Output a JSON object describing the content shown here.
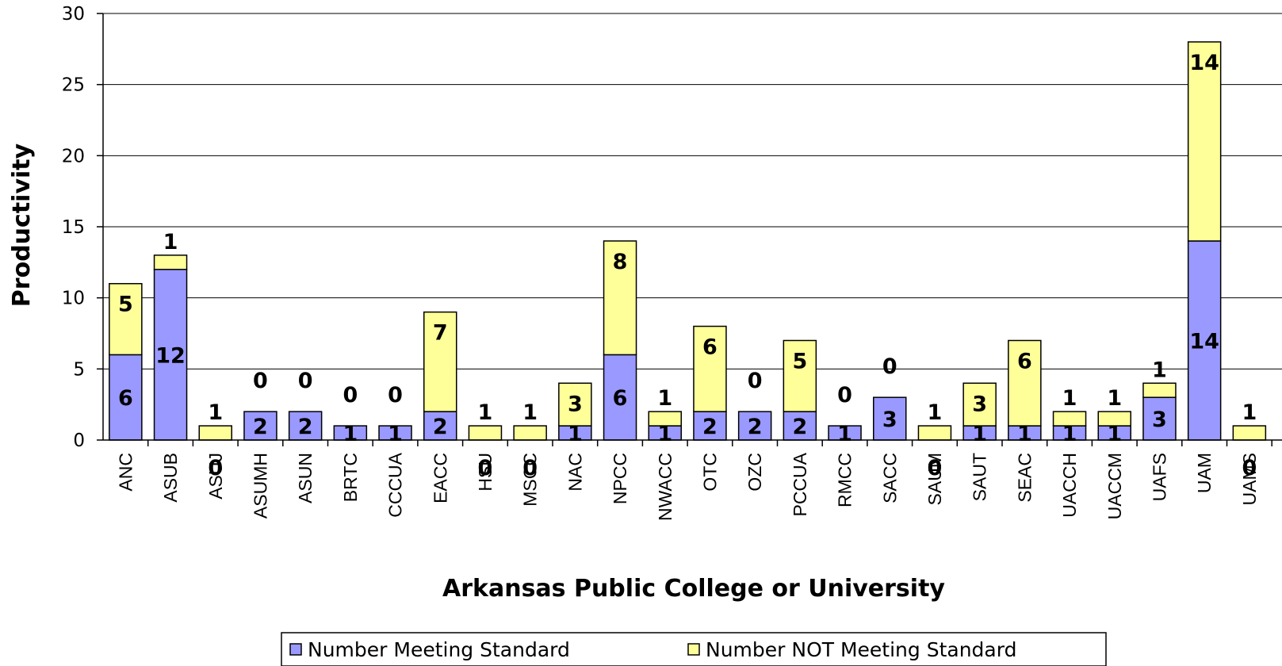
{
  "chart_data": {
    "type": "bar",
    "stacked": true,
    "categories": [
      "ANC",
      "ASUB",
      "ASUJ",
      "ASUMH",
      "ASUN",
      "BRTC",
      "CCCUA",
      "EACC",
      "HSU",
      "MSCC",
      "NAC",
      "NPCC",
      "NWACC",
      "OTC",
      "OZC",
      "PCCUA",
      "RMCC",
      "SACC",
      "SAUM",
      "SAUT",
      "SEAC",
      "UACCH",
      "UACCM",
      "UAFS",
      "UAM",
      "UAMS"
    ],
    "series": [
      {
        "name": "Number Meeting Standard",
        "color": "#9999ff",
        "values": [
          6,
          12,
          0,
          2,
          2,
          1,
          1,
          2,
          0,
          0,
          1,
          6,
          1,
          2,
          2,
          2,
          1,
          3,
          0,
          1,
          1,
          1,
          1,
          3,
          14,
          0
        ]
      },
      {
        "name": "Number NOT Meeting Standard",
        "color": "#ffff99",
        "values": [
          5,
          1,
          1,
          0,
          0,
          0,
          0,
          7,
          1,
          1,
          3,
          8,
          1,
          6,
          0,
          5,
          0,
          0,
          1,
          3,
          6,
          1,
          1,
          1,
          14,
          1
        ]
      }
    ],
    "xlabel": "Arkansas Public College or University",
    "ylabel": "Productivity",
    "ylim": [
      0,
      30
    ],
    "yticks": [
      0,
      5,
      10,
      15,
      20,
      25,
      30
    ],
    "grid": true,
    "legend": "bottom"
  }
}
